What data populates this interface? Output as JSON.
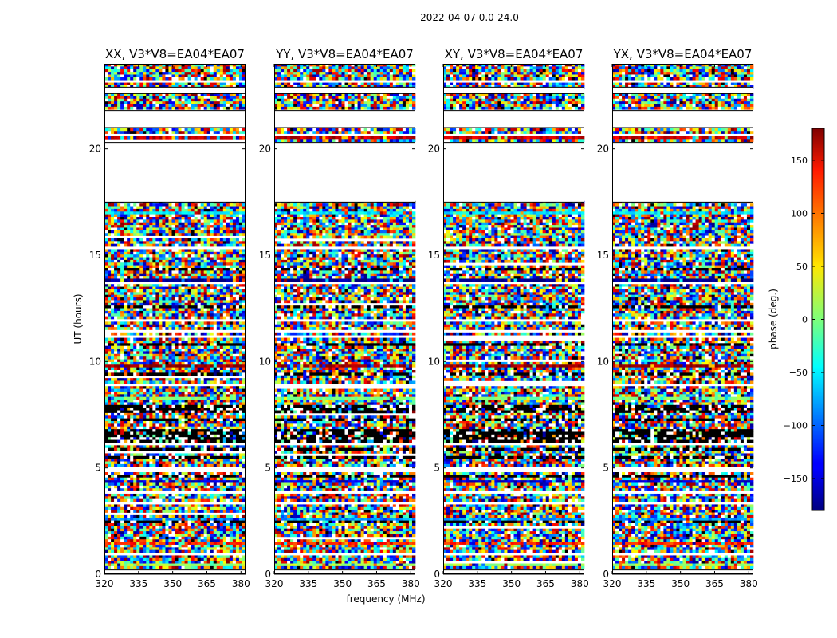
{
  "chart_data": {
    "type": "heatmap",
    "suptitle": "2022-04-07 0.0-24.0",
    "xlabel": "frequency (MHz)",
    "ylabel": "UT (hours)",
    "xlim": [
      320,
      382
    ],
    "ylim": [
      0,
      24
    ],
    "xticks": [
      320,
      335,
      350,
      365,
      380
    ],
    "yticks": [
      0,
      5,
      10,
      15,
      20
    ],
    "colorbar": {
      "label": "phase (deg.)",
      "range": [
        -180,
        180
      ],
      "ticks": [
        150,
        100,
        50,
        0,
        -50,
        -100,
        -150
      ],
      "tick_labels": [
        "150",
        "100",
        "50",
        "0",
        "−50",
        "−100",
        "−150"
      ],
      "colormap": "jet"
    },
    "panels": [
      {
        "title": "XX, V3*V8=EA04*EA07"
      },
      {
        "title": "YY, V3*V8=EA04*EA07"
      },
      {
        "title": "XY, V3*V8=EA04*EA07"
      },
      {
        "title": "YX, V3*V8=EA04*EA07"
      }
    ],
    "flagged_ut_ranges": [
      [
        0,
        0.2
      ],
      [
        21.0,
        21.8
      ],
      [
        17.5,
        20.3
      ],
      [
        22.6,
        22.9
      ]
    ]
  }
}
